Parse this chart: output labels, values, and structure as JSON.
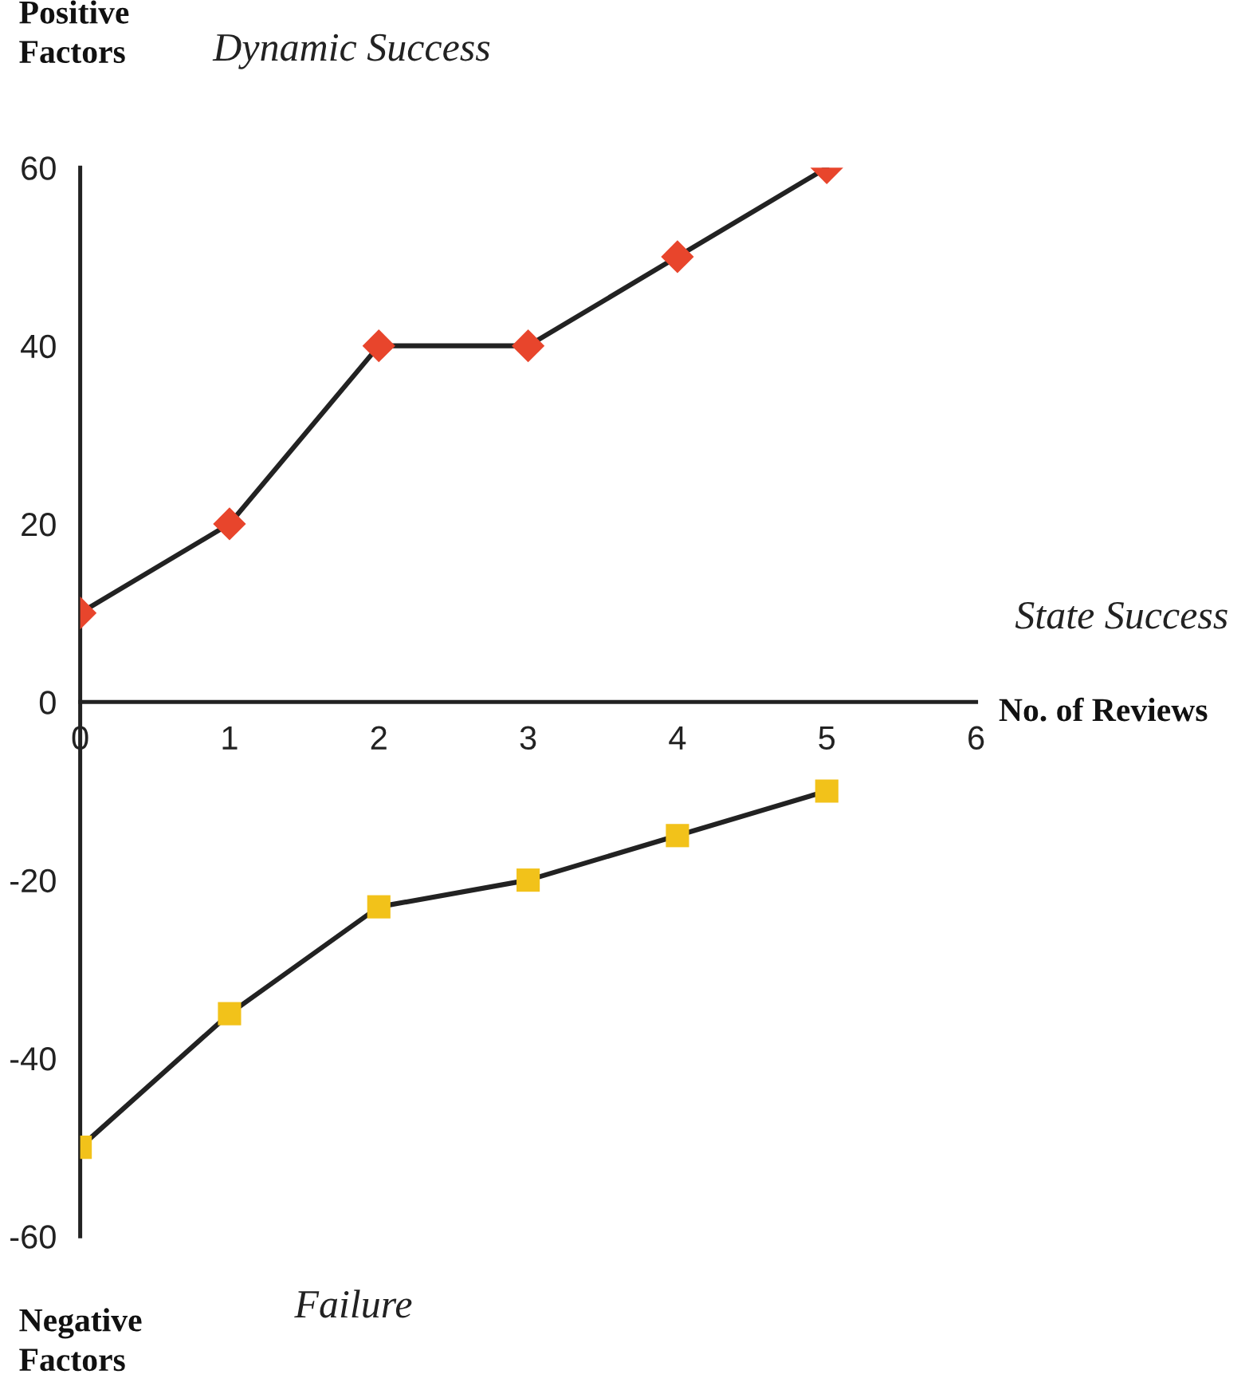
{
  "chart_data": {
    "type": "line",
    "xlabel": "No. of Reviews",
    "ylabel": "Positive Factors",
    "x": [
      0,
      1,
      2,
      3,
      4,
      5
    ],
    "series": [
      {
        "color": "#e8452c",
        "marker": "diamond",
        "values": [
          10,
          20,
          40,
          40,
          50,
          60
        ]
      },
      {
        "color": "#f2c21a",
        "marker": "square",
        "values": [
          -50,
          -35,
          -23,
          -20,
          -15,
          -10
        ]
      }
    ],
    "xlim": [
      0,
      6
    ],
    "xticks": [
      0,
      1,
      2,
      3,
      4,
      5,
      6
    ],
    "ylim": [
      -60,
      60
    ],
    "yticks": [
      -60,
      -40,
      -20,
      0,
      20,
      40,
      60
    ],
    "grid": false,
    "legend": false,
    "annotations": [
      "Dynamic Success",
      "State Success",
      "Failure",
      "Negative Factors"
    ]
  }
}
